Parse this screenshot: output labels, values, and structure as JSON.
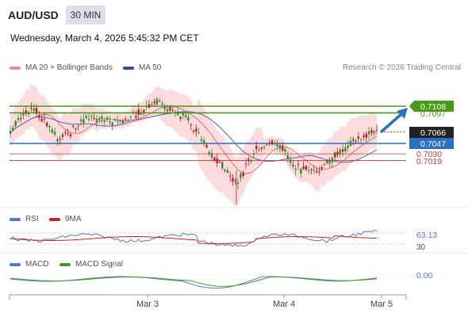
{
  "header": {
    "symbol": "AUD/USD",
    "timeframe": "30 MIN",
    "datetime": "Wednesday, March 4, 2026 5:45:32 PM CET"
  },
  "main_chart": {
    "legend": [
      {
        "label": "MA 20 + Bollinger Bands",
        "color": "#f28b8b"
      },
      {
        "label": "MA 50",
        "color": "#2c4f8a"
      }
    ],
    "credit": "Research © 2026 Trading Central",
    "levels": [
      {
        "value": "0.7108",
        "color": "#4a9a1a",
        "style": "green-label"
      },
      {
        "value": "0.7097",
        "color": "#4a9a1a",
        "style": "hidden-behind"
      },
      {
        "value": "0.7066",
        "color": "#222222",
        "style": "current-price"
      },
      {
        "value": "0.7047",
        "color": "#2a6fc4",
        "style": "blue-label"
      },
      {
        "value": "0.7030",
        "color": "#d23a3a",
        "style": "red-text"
      },
      {
        "value": "0.7019",
        "color": "#d23a3a",
        "style": "red-text"
      }
    ]
  },
  "rsi_panel": {
    "legend": [
      {
        "label": "RSI",
        "color": "#5577cc"
      },
      {
        "label": "9MA",
        "color": "#cc2222"
      }
    ],
    "value_label": "63.13",
    "lower_label": "30"
  },
  "macd_panel": {
    "legend": [
      {
        "label": "MACD",
        "color": "#5577cc"
      },
      {
        "label": "MACD Signal",
        "color": "#4a9a1a"
      }
    ],
    "value_label": "0.00"
  },
  "x_axis": {
    "ticks": [
      "Mar 3",
      "Mar 4",
      "Mar 5"
    ]
  }
}
